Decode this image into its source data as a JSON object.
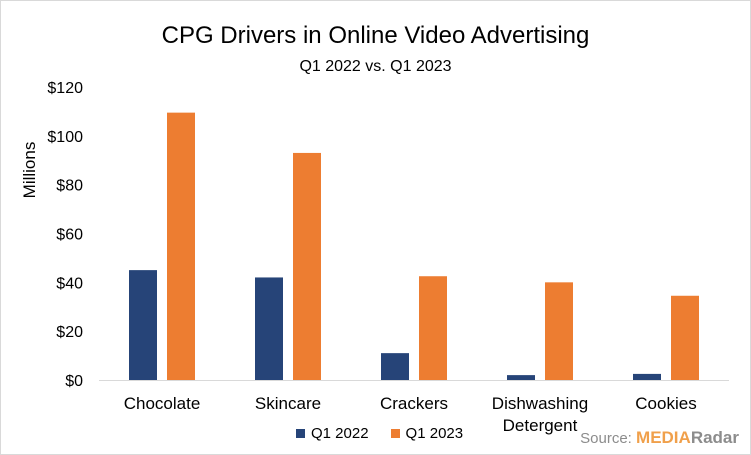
{
  "colors": {
    "q1_2022": "#264478",
    "q1_2023": "#ed7d31",
    "axis": "#d9d9d9"
  },
  "chart_data": {
    "type": "bar",
    "title": "CPG Drivers in Online Video Advertising",
    "subtitle": "Q1 2022 vs. Q1 2023",
    "ylabel": "Millions",
    "xlabel": "",
    "categories": [
      "Chocolate",
      "Skincare",
      "Crackers",
      "Dishwashing Detergent",
      "Cookies"
    ],
    "category_lines": [
      [
        "Chocolate"
      ],
      [
        "Skincare"
      ],
      [
        "Crackers"
      ],
      [
        "Dishwashing",
        "Detergent"
      ],
      [
        "Cookies"
      ]
    ],
    "series": [
      {
        "name": "Q1 2022",
        "values": [
          45,
          42,
          11,
          2,
          2.5
        ]
      },
      {
        "name": "Q1 2023",
        "values": [
          109.5,
          93,
          42.5,
          40,
          34.5
        ]
      }
    ],
    "ylim": [
      0,
      120
    ],
    "yticks": [
      0,
      20,
      40,
      60,
      80,
      100,
      120
    ],
    "ytick_labels": [
      "$0",
      "$20",
      "$40",
      "$60",
      "$80",
      "$100",
      "$120"
    ],
    "grid": false,
    "legend_position": "bottom"
  },
  "source": {
    "prefix": "Source: ",
    "brand_a": "MEDIA",
    "brand_b": "Radar"
  }
}
